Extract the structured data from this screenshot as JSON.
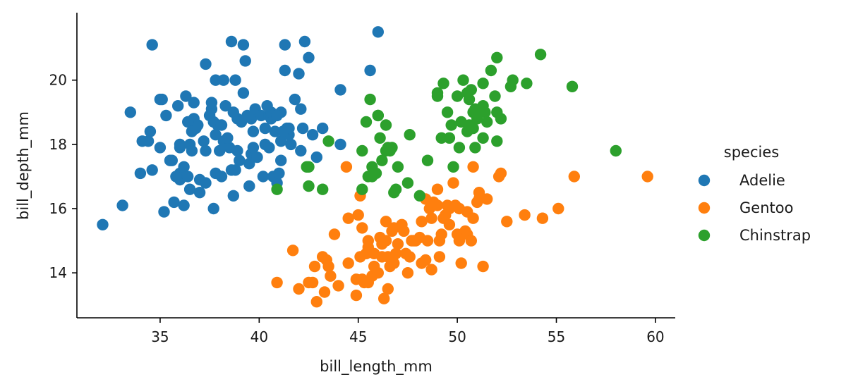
{
  "chart_data": {
    "type": "scatter",
    "xlabel": "bill_length_mm",
    "ylabel": "bill_depth_mm",
    "xlim": [
      30.8,
      61.0
    ],
    "ylim": [
      12.6,
      22.1
    ],
    "xticks": [
      35,
      40,
      45,
      50,
      55,
      60
    ],
    "yticks": [
      14,
      16,
      18,
      20
    ],
    "grid": false,
    "legend": {
      "title": "species",
      "placement": "right"
    },
    "series": [
      {
        "name": "Adelie",
        "color": "#1f77b4",
        "points": [
          [
            32.1,
            15.5
          ],
          [
            33.1,
            16.1
          ],
          [
            33.5,
            19.0
          ],
          [
            34.0,
            17.1
          ],
          [
            34.1,
            18.1
          ],
          [
            34.4,
            18.1
          ],
          [
            34.5,
            18.4
          ],
          [
            34.6,
            21.1
          ],
          [
            34.6,
            17.2
          ],
          [
            35.0,
            17.9
          ],
          [
            35.1,
            19.4
          ],
          [
            35.2,
            15.9
          ],
          [
            35.3,
            18.9
          ],
          [
            35.5,
            17.5
          ],
          [
            35.6,
            17.5
          ],
          [
            35.7,
            16.2
          ],
          [
            35.9,
            19.2
          ],
          [
            35.9,
            17.0
          ],
          [
            36.0,
            17.9
          ],
          [
            36.0,
            16.9
          ],
          [
            36.0,
            18.0
          ],
          [
            36.0,
            17.1
          ],
          [
            36.2,
            16.1
          ],
          [
            36.2,
            17.3
          ],
          [
            36.3,
            19.5
          ],
          [
            36.4,
            17.0
          ],
          [
            36.5,
            16.6
          ],
          [
            36.5,
            18.0
          ],
          [
            36.6,
            17.8
          ],
          [
            36.7,
            18.8
          ],
          [
            36.7,
            19.3
          ],
          [
            36.8,
            18.5
          ],
          [
            36.9,
            18.6
          ],
          [
            37.0,
            16.9
          ],
          [
            37.2,
            18.1
          ],
          [
            37.3,
            20.5
          ],
          [
            37.3,
            17.8
          ],
          [
            37.3,
            16.8
          ],
          [
            37.6,
            19.1
          ],
          [
            37.6,
            19.3
          ],
          [
            37.7,
            18.7
          ],
          [
            37.7,
            16.0
          ],
          [
            37.8,
            18.3
          ],
          [
            37.8,
            17.1
          ],
          [
            37.8,
            20.0
          ],
          [
            37.9,
            18.6
          ],
          [
            38.1,
            18.6
          ],
          [
            38.1,
            17.0
          ],
          [
            38.2,
            18.1
          ],
          [
            38.2,
            20.0
          ],
          [
            38.3,
            19.2
          ],
          [
            38.5,
            17.9
          ],
          [
            38.6,
            21.2
          ],
          [
            38.6,
            17.2
          ],
          [
            38.7,
            19.0
          ],
          [
            38.8,
            17.2
          ],
          [
            38.8,
            20.0
          ],
          [
            38.9,
            18.8
          ],
          [
            38.9,
            17.8
          ],
          [
            39.0,
            17.5
          ],
          [
            39.1,
            18.7
          ],
          [
            39.2,
            19.6
          ],
          [
            39.2,
            21.1
          ],
          [
            39.3,
            20.6
          ],
          [
            39.5,
            17.4
          ],
          [
            39.5,
            16.7
          ],
          [
            39.6,
            17.7
          ],
          [
            39.6,
            18.8
          ],
          [
            39.7,
            17.9
          ],
          [
            39.7,
            18.4
          ],
          [
            39.8,
            19.1
          ],
          [
            40.1,
            18.9
          ],
          [
            40.2,
            17.0
          ],
          [
            40.3,
            18.0
          ],
          [
            40.3,
            18.5
          ],
          [
            40.5,
            17.9
          ],
          [
            40.5,
            18.9
          ],
          [
            40.6,
            18.8
          ],
          [
            40.6,
            19.0
          ],
          [
            40.7,
            17.0
          ],
          [
            40.8,
            18.4
          ],
          [
            40.9,
            16.8
          ],
          [
            41.0,
            17.1
          ],
          [
            41.1,
            18.1
          ],
          [
            41.1,
            19.0
          ],
          [
            41.1,
            17.5
          ],
          [
            41.3,
            21.1
          ],
          [
            41.3,
            20.3
          ],
          [
            41.4,
            18.5
          ],
          [
            41.5,
            18.3
          ],
          [
            41.6,
            18.0
          ],
          [
            41.8,
            19.4
          ],
          [
            42.0,
            20.2
          ],
          [
            42.1,
            19.1
          ],
          [
            42.2,
            18.5
          ],
          [
            42.3,
            21.2
          ],
          [
            42.5,
            20.7
          ],
          [
            42.7,
            18.3
          ],
          [
            42.9,
            17.6
          ],
          [
            43.2,
            18.5
          ],
          [
            44.1,
            18.0
          ],
          [
            44.1,
            19.7
          ],
          [
            45.6,
            20.3
          ],
          [
            46.0,
            21.5
          ],
          [
            35.0,
            19.4
          ],
          [
            36.4,
            18.7
          ],
          [
            38.0,
            17.8
          ],
          [
            39.9,
            17.6
          ],
          [
            40.9,
            18.9
          ],
          [
            41.5,
            18.5
          ],
          [
            42.1,
            17.8
          ],
          [
            37.5,
            18.9
          ],
          [
            38.4,
            18.2
          ],
          [
            39.4,
            18.9
          ],
          [
            40.4,
            19.2
          ],
          [
            41.2,
            18.4
          ],
          [
            36.6,
            18.4
          ],
          [
            35.8,
            17.0
          ],
          [
            37.0,
            16.5
          ],
          [
            38.7,
            16.4
          ]
        ]
      },
      {
        "name": "Gentoo",
        "color": "#ff7f0e",
        "points": [
          [
            40.9,
            13.7
          ],
          [
            41.7,
            14.7
          ],
          [
            42.0,
            13.5
          ],
          [
            42.5,
            13.7
          ],
          [
            42.7,
            13.7
          ],
          [
            42.8,
            14.2
          ],
          [
            42.9,
            13.1
          ],
          [
            43.2,
            14.5
          ],
          [
            43.3,
            13.4
          ],
          [
            43.4,
            14.4
          ],
          [
            43.5,
            14.2
          ],
          [
            43.6,
            13.9
          ],
          [
            43.8,
            15.2
          ],
          [
            44.0,
            13.6
          ],
          [
            44.4,
            17.3
          ],
          [
            44.5,
            15.7
          ],
          [
            44.5,
            14.3
          ],
          [
            44.9,
            13.8
          ],
          [
            44.9,
            13.3
          ],
          [
            45.1,
            14.5
          ],
          [
            45.2,
            13.8
          ],
          [
            45.2,
            15.4
          ],
          [
            45.3,
            13.7
          ],
          [
            45.4,
            14.6
          ],
          [
            45.5,
            13.7
          ],
          [
            45.5,
            15.0
          ],
          [
            45.7,
            13.9
          ],
          [
            45.8,
            14.2
          ],
          [
            45.8,
            14.6
          ],
          [
            46.1,
            15.1
          ],
          [
            46.2,
            14.5
          ],
          [
            46.2,
            14.9
          ],
          [
            46.4,
            15.6
          ],
          [
            46.4,
            15.0
          ],
          [
            46.5,
            14.5
          ],
          [
            46.5,
            13.5
          ],
          [
            46.6,
            14.2
          ],
          [
            46.8,
            15.4
          ],
          [
            46.8,
            14.3
          ],
          [
            46.9,
            14.6
          ],
          [
            47.2,
            15.5
          ],
          [
            47.3,
            15.3
          ],
          [
            47.5,
            14.0
          ],
          [
            47.6,
            14.5
          ],
          [
            47.7,
            15.0
          ],
          [
            47.8,
            15.0
          ],
          [
            48.1,
            15.1
          ],
          [
            48.2,
            14.3
          ],
          [
            48.2,
            15.6
          ],
          [
            48.4,
            14.4
          ],
          [
            48.5,
            15.0
          ],
          [
            48.6,
            16.0
          ],
          [
            48.7,
            14.1
          ],
          [
            48.7,
            15.7
          ],
          [
            48.8,
            16.2
          ],
          [
            49.0,
            16.1
          ],
          [
            49.1,
            15.0
          ],
          [
            49.1,
            14.5
          ],
          [
            49.2,
            15.2
          ],
          [
            49.3,
            15.7
          ],
          [
            49.4,
            15.8
          ],
          [
            49.5,
            16.1
          ],
          [
            49.6,
            16.0
          ],
          [
            49.8,
            16.8
          ],
          [
            49.9,
            16.1
          ],
          [
            50.0,
            15.2
          ],
          [
            50.1,
            15.0
          ],
          [
            50.2,
            14.3
          ],
          [
            50.4,
            15.3
          ],
          [
            50.5,
            15.9
          ],
          [
            50.5,
            15.2
          ],
          [
            50.7,
            15.0
          ],
          [
            50.8,
            15.7
          ],
          [
            50.8,
            17.3
          ],
          [
            51.1,
            16.3
          ],
          [
            51.1,
            16.5
          ],
          [
            51.3,
            14.2
          ],
          [
            51.5,
            16.3
          ],
          [
            52.1,
            17.0
          ],
          [
            52.2,
            17.1
          ],
          [
            52.5,
            15.6
          ],
          [
            53.4,
            15.8
          ],
          [
            54.3,
            15.7
          ],
          [
            55.1,
            16.0
          ],
          [
            55.9,
            17.0
          ],
          [
            59.6,
            17.0
          ],
          [
            45.0,
            15.8
          ],
          [
            45.1,
            16.4
          ],
          [
            45.5,
            14.8
          ],
          [
            46.0,
            14.0
          ],
          [
            46.3,
            13.2
          ],
          [
            46.7,
            15.3
          ],
          [
            47.0,
            14.9
          ],
          [
            47.4,
            14.6
          ],
          [
            47.9,
            15.0
          ],
          [
            48.4,
            16.3
          ],
          [
            49.0,
            16.6
          ],
          [
            49.6,
            15.5
          ],
          [
            50.1,
            16.0
          ],
          [
            51.0,
            16.2
          ]
        ]
      },
      {
        "name": "Chinstrap",
        "color": "#2ca02c",
        "points": [
          [
            40.9,
            16.6
          ],
          [
            42.4,
            17.3
          ],
          [
            42.5,
            16.7
          ],
          [
            42.5,
            17.3
          ],
          [
            43.2,
            16.6
          ],
          [
            43.5,
            18.1
          ],
          [
            45.2,
            17.8
          ],
          [
            45.2,
            16.6
          ],
          [
            45.4,
            18.7
          ],
          [
            45.5,
            17.0
          ],
          [
            45.6,
            19.4
          ],
          [
            45.7,
            17.3
          ],
          [
            45.7,
            17.0
          ],
          [
            45.9,
            17.1
          ],
          [
            46.0,
            18.9
          ],
          [
            46.1,
            18.2
          ],
          [
            46.2,
            17.5
          ],
          [
            46.4,
            18.6
          ],
          [
            46.4,
            17.8
          ],
          [
            46.5,
            17.9
          ],
          [
            46.6,
            17.8
          ],
          [
            46.7,
            17.9
          ],
          [
            46.8,
            16.5
          ],
          [
            46.9,
            16.6
          ],
          [
            47.0,
            17.3
          ],
          [
            47.5,
            16.8
          ],
          [
            47.6,
            18.3
          ],
          [
            48.1,
            16.4
          ],
          [
            48.5,
            17.5
          ],
          [
            49.0,
            19.5
          ],
          [
            49.0,
            19.6
          ],
          [
            49.2,
            18.2
          ],
          [
            49.3,
            19.9
          ],
          [
            49.5,
            19.0
          ],
          [
            49.6,
            18.2
          ],
          [
            49.7,
            18.6
          ],
          [
            49.8,
            17.3
          ],
          [
            50.0,
            19.5
          ],
          [
            50.1,
            17.9
          ],
          [
            50.2,
            18.7
          ],
          [
            50.3,
            20.0
          ],
          [
            50.5,
            18.4
          ],
          [
            50.5,
            19.6
          ],
          [
            50.6,
            19.4
          ],
          [
            50.7,
            19.7
          ],
          [
            50.8,
            18.5
          ],
          [
            50.8,
            19.0
          ],
          [
            50.9,
            17.9
          ],
          [
            50.9,
            19.1
          ],
          [
            51.0,
            18.8
          ],
          [
            51.3,
            18.2
          ],
          [
            51.3,
            19.2
          ],
          [
            51.3,
            19.9
          ],
          [
            51.4,
            19.0
          ],
          [
            51.5,
            18.7
          ],
          [
            51.7,
            20.3
          ],
          [
            51.9,
            19.5
          ],
          [
            52.0,
            18.1
          ],
          [
            52.0,
            19.0
          ],
          [
            52.0,
            20.7
          ],
          [
            52.2,
            18.8
          ],
          [
            52.7,
            19.8
          ],
          [
            52.8,
            20.0
          ],
          [
            53.5,
            19.9
          ],
          [
            54.2,
            20.8
          ],
          [
            55.8,
            19.8
          ],
          [
            58.0,
            17.8
          ],
          [
            46.0,
            18.9
          ],
          [
            50.6,
            18.6
          ],
          [
            51.0,
            19.0
          ]
        ]
      }
    ]
  }
}
